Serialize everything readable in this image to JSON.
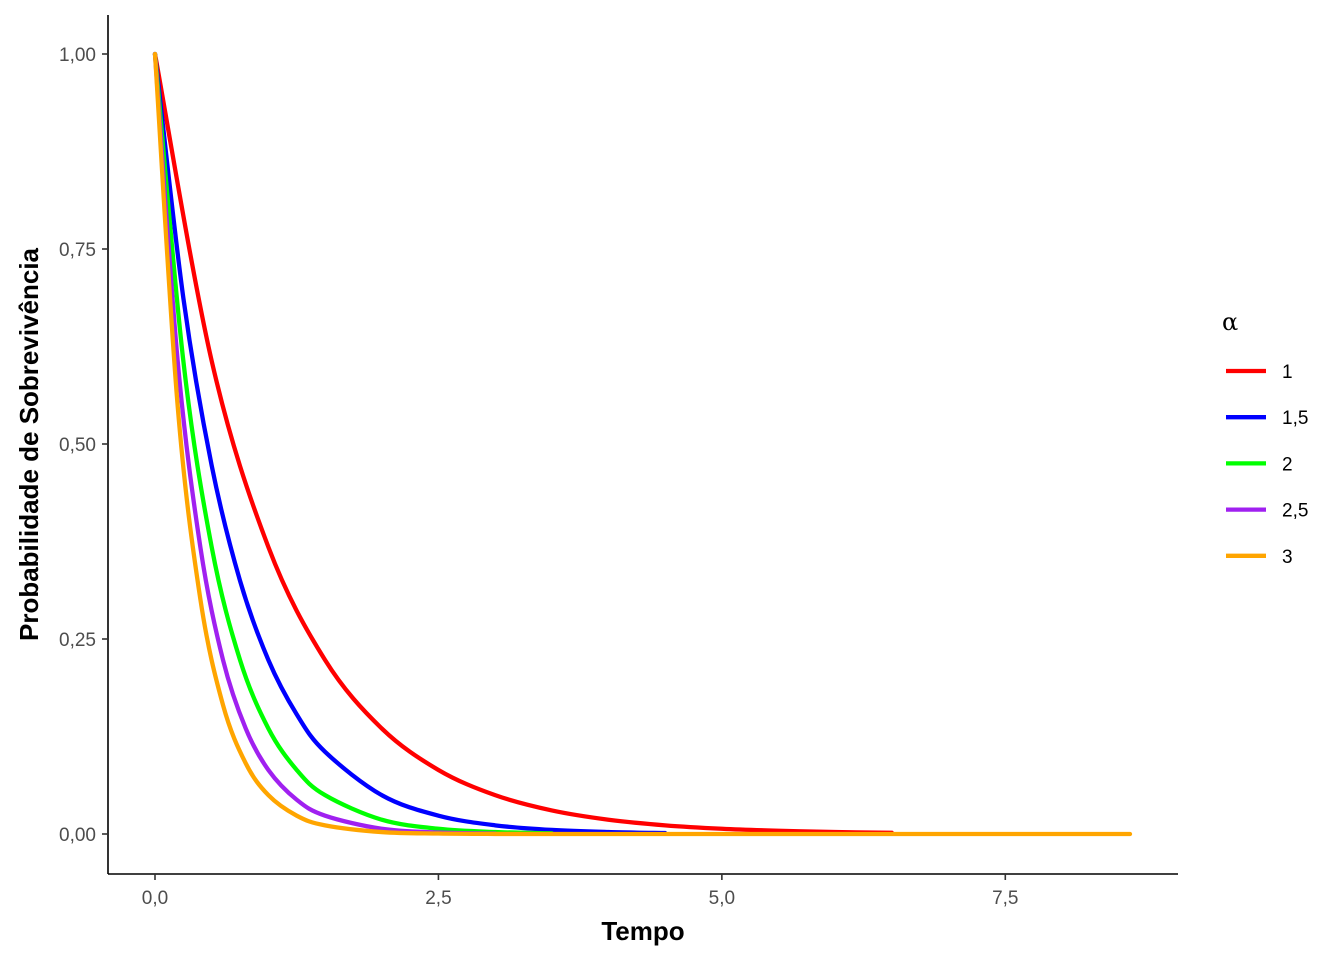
{
  "chart_data": {
    "type": "line",
    "title": "",
    "xlabel": "Tempo",
    "ylabel": "Probabilidade de Sobrevivência",
    "xlim": [
      -0.42,
      9.1
    ],
    "ylim": [
      -0.05,
      1.05
    ],
    "x_ticks": [
      0,
      2.5,
      5,
      7.5
    ],
    "x_tick_labels": [
      "0,0",
      "2,5",
      "5,0",
      "7,5"
    ],
    "y_ticks": [
      0,
      0.25,
      0.5,
      0.75,
      1
    ],
    "y_tick_labels": [
      "0,00",
      "0,25",
      "0,50",
      "0,75",
      "1,00"
    ],
    "grid": false,
    "legend": {
      "title": "α",
      "position": "right"
    },
    "series": [
      {
        "name": "1",
        "color": "#ff0000",
        "x": [
          0,
          0.5,
          1.0,
          1.5,
          2.0,
          2.5,
          3.0,
          3.5,
          4.0,
          4.5,
          5.0,
          5.5,
          6.0,
          6.5
        ],
        "y": [
          1.0,
          0.6065,
          0.3679,
          0.2231,
          0.1353,
          0.0821,
          0.0498,
          0.0302,
          0.0183,
          0.0111,
          0.0067,
          0.0041,
          0.0025,
          0.0015
        ]
      },
      {
        "name": "1,5",
        "color": "#0000ff",
        "x": [
          0,
          0.25,
          0.5,
          0.75,
          1.0,
          1.25,
          1.5,
          2.0,
          2.5,
          3.0,
          3.5,
          4.0,
          4.5
        ],
        "y": [
          1.0,
          0.6873,
          0.4724,
          0.3247,
          0.2231,
          0.1534,
          0.1054,
          0.0498,
          0.0235,
          0.0111,
          0.0052,
          0.0025,
          0.0012
        ]
      },
      {
        "name": "2",
        "color": "#00ff00",
        "x": [
          0,
          0.25,
          0.5,
          0.75,
          1.0,
          1.25,
          1.5,
          2.0,
          2.5,
          3.0,
          3.5
        ],
        "y": [
          1.0,
          0.6065,
          0.3679,
          0.2231,
          0.1353,
          0.0821,
          0.0498,
          0.0183,
          0.0067,
          0.0025,
          0.0009
        ]
      },
      {
        "name": "2,5",
        "color": "#a020f0",
        "x": [
          0,
          0.2,
          0.4,
          0.6,
          0.8,
          1.0,
          1.25,
          1.5,
          2.0,
          2.5,
          3.0
        ],
        "y": [
          1.0,
          0.6065,
          0.3679,
          0.2231,
          0.1353,
          0.0821,
          0.0439,
          0.0235,
          0.0067,
          0.0019,
          0.0006
        ]
      },
      {
        "name": "3",
        "color": "#ffa500",
        "x": [
          0,
          0.2,
          0.4,
          0.6,
          0.8,
          1.0,
          1.25,
          1.5,
          2.0,
          2.5,
          3.0,
          4.0,
          5.0,
          6.0,
          7.0,
          8.0,
          8.6
        ],
        "y": [
          1.0,
          0.5488,
          0.3012,
          0.1653,
          0.0907,
          0.0498,
          0.0235,
          0.0111,
          0.0025,
          0.0006,
          0.0001,
          0.0,
          0.0,
          0.0,
          0.0,
          0.0,
          0.0
        ]
      }
    ]
  }
}
